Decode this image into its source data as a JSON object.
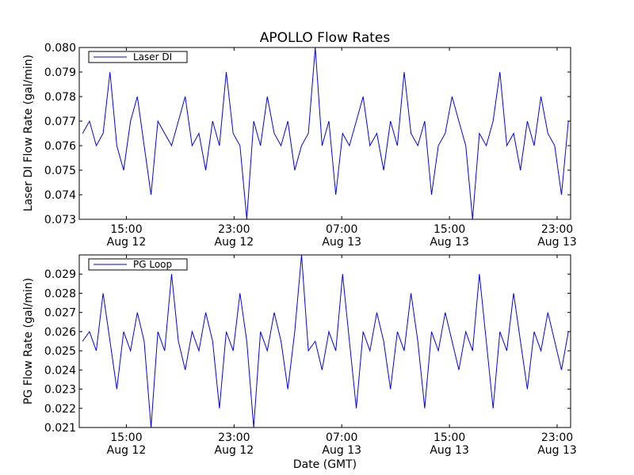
{
  "chart_data": [
    {
      "type": "line",
      "title": "APOLLO Flow Rates",
      "xlabel": "",
      "ylabel": "Laser DI Flow Rate (gal/min)",
      "ylim": [
        0.073,
        0.08
      ],
      "yticks": [
        "0.073",
        "0.074",
        "0.075",
        "0.076",
        "0.077",
        "0.078",
        "0.079",
        "0.080"
      ],
      "xlim": [
        "2012-08-12 11:30",
        "2012-08-14 00:00"
      ],
      "xticks": [
        {
          "at": "2012-08-12 15:00",
          "time": "15:00",
          "date": "Aug 12"
        },
        {
          "at": "2012-08-12 23:00",
          "time": "23:00",
          "date": "Aug 12"
        },
        {
          "at": "2012-08-13 07:00",
          "time": "07:00",
          "date": "Aug 13"
        },
        {
          "at": "2012-08-13 15:00",
          "time": "15:00",
          "date": "Aug 13"
        },
        {
          "at": "2012-08-13 23:00",
          "time": "23:00",
          "date": "Aug 13"
        }
      ],
      "legend": {
        "placement": "top-left"
      },
      "series": [
        {
          "name": "Laser DI",
          "color": "#0000ff",
          "sampling": "dense time series, values fluctuate mostly between 0.076 and 0.077",
          "values": [
            0.0765,
            0.077,
            0.076,
            0.0765,
            0.079,
            0.076,
            0.075,
            0.077,
            0.078,
            0.076,
            0.074,
            0.077,
            0.0765,
            0.076,
            0.077,
            0.078,
            0.076,
            0.0765,
            0.075,
            0.077,
            0.076,
            0.079,
            0.0765,
            0.076,
            0.073,
            0.077,
            0.076,
            0.078,
            0.0765,
            0.076,
            0.077,
            0.075,
            0.076,
            0.0765,
            0.08,
            0.076,
            0.077,
            0.074,
            0.0765,
            0.076,
            0.077,
            0.078,
            0.076,
            0.0765,
            0.075,
            0.077,
            0.076,
            0.079,
            0.0765,
            0.076,
            0.077,
            0.074,
            0.076,
            0.0765,
            0.078,
            0.077,
            0.076,
            0.073,
            0.0765,
            0.076,
            0.077,
            0.079,
            0.076,
            0.0765,
            0.075,
            0.077,
            0.076,
            0.078,
            0.0765,
            0.076,
            0.074,
            0.077
          ]
        }
      ]
    },
    {
      "type": "line",
      "title": "",
      "xlabel": "Date (GMT)",
      "ylabel": "PG Flow Rate (gal/min)",
      "ylim": [
        0.021,
        0.03
      ],
      "yticks": [
        "0.021",
        "0.022",
        "0.023",
        "0.024",
        "0.025",
        "0.026",
        "0.027",
        "0.028",
        "0.029"
      ],
      "xlim": [
        "2012-08-12 11:30",
        "2012-08-14 00:00"
      ],
      "xticks": [
        {
          "at": "2012-08-12 15:00",
          "time": "15:00",
          "date": "Aug 12"
        },
        {
          "at": "2012-08-12 23:00",
          "time": "23:00",
          "date": "Aug 12"
        },
        {
          "at": "2012-08-13 07:00",
          "time": "07:00",
          "date": "Aug 13"
        },
        {
          "at": "2012-08-13 15:00",
          "time": "15:00",
          "date": "Aug 13"
        },
        {
          "at": "2012-08-13 23:00",
          "time": "23:00",
          "date": "Aug 13"
        }
      ],
      "legend": {
        "placement": "top-left"
      },
      "series": [
        {
          "name": "PG Loop",
          "color": "#0000ff",
          "sampling": "dense time series, values fluctuate mostly between 0.025 and 0.026",
          "values": [
            0.0255,
            0.026,
            0.025,
            0.028,
            0.0255,
            0.023,
            0.026,
            0.025,
            0.027,
            0.0255,
            0.021,
            0.026,
            0.025,
            0.029,
            0.0255,
            0.024,
            0.026,
            0.025,
            0.027,
            0.0255,
            0.022,
            0.026,
            0.025,
            0.028,
            0.0255,
            0.021,
            0.026,
            0.025,
            0.027,
            0.0255,
            0.023,
            0.026,
            0.03,
            0.025,
            0.0255,
            0.024,
            0.026,
            0.025,
            0.029,
            0.0255,
            0.022,
            0.026,
            0.025,
            0.027,
            0.0255,
            0.023,
            0.026,
            0.025,
            0.028,
            0.0255,
            0.022,
            0.026,
            0.025,
            0.027,
            0.0255,
            0.024,
            0.026,
            0.025,
            0.029,
            0.0255,
            0.022,
            0.026,
            0.025,
            0.028,
            0.0255,
            0.023,
            0.026,
            0.025,
            0.027,
            0.0255,
            0.024,
            0.026
          ]
        }
      ]
    }
  ]
}
